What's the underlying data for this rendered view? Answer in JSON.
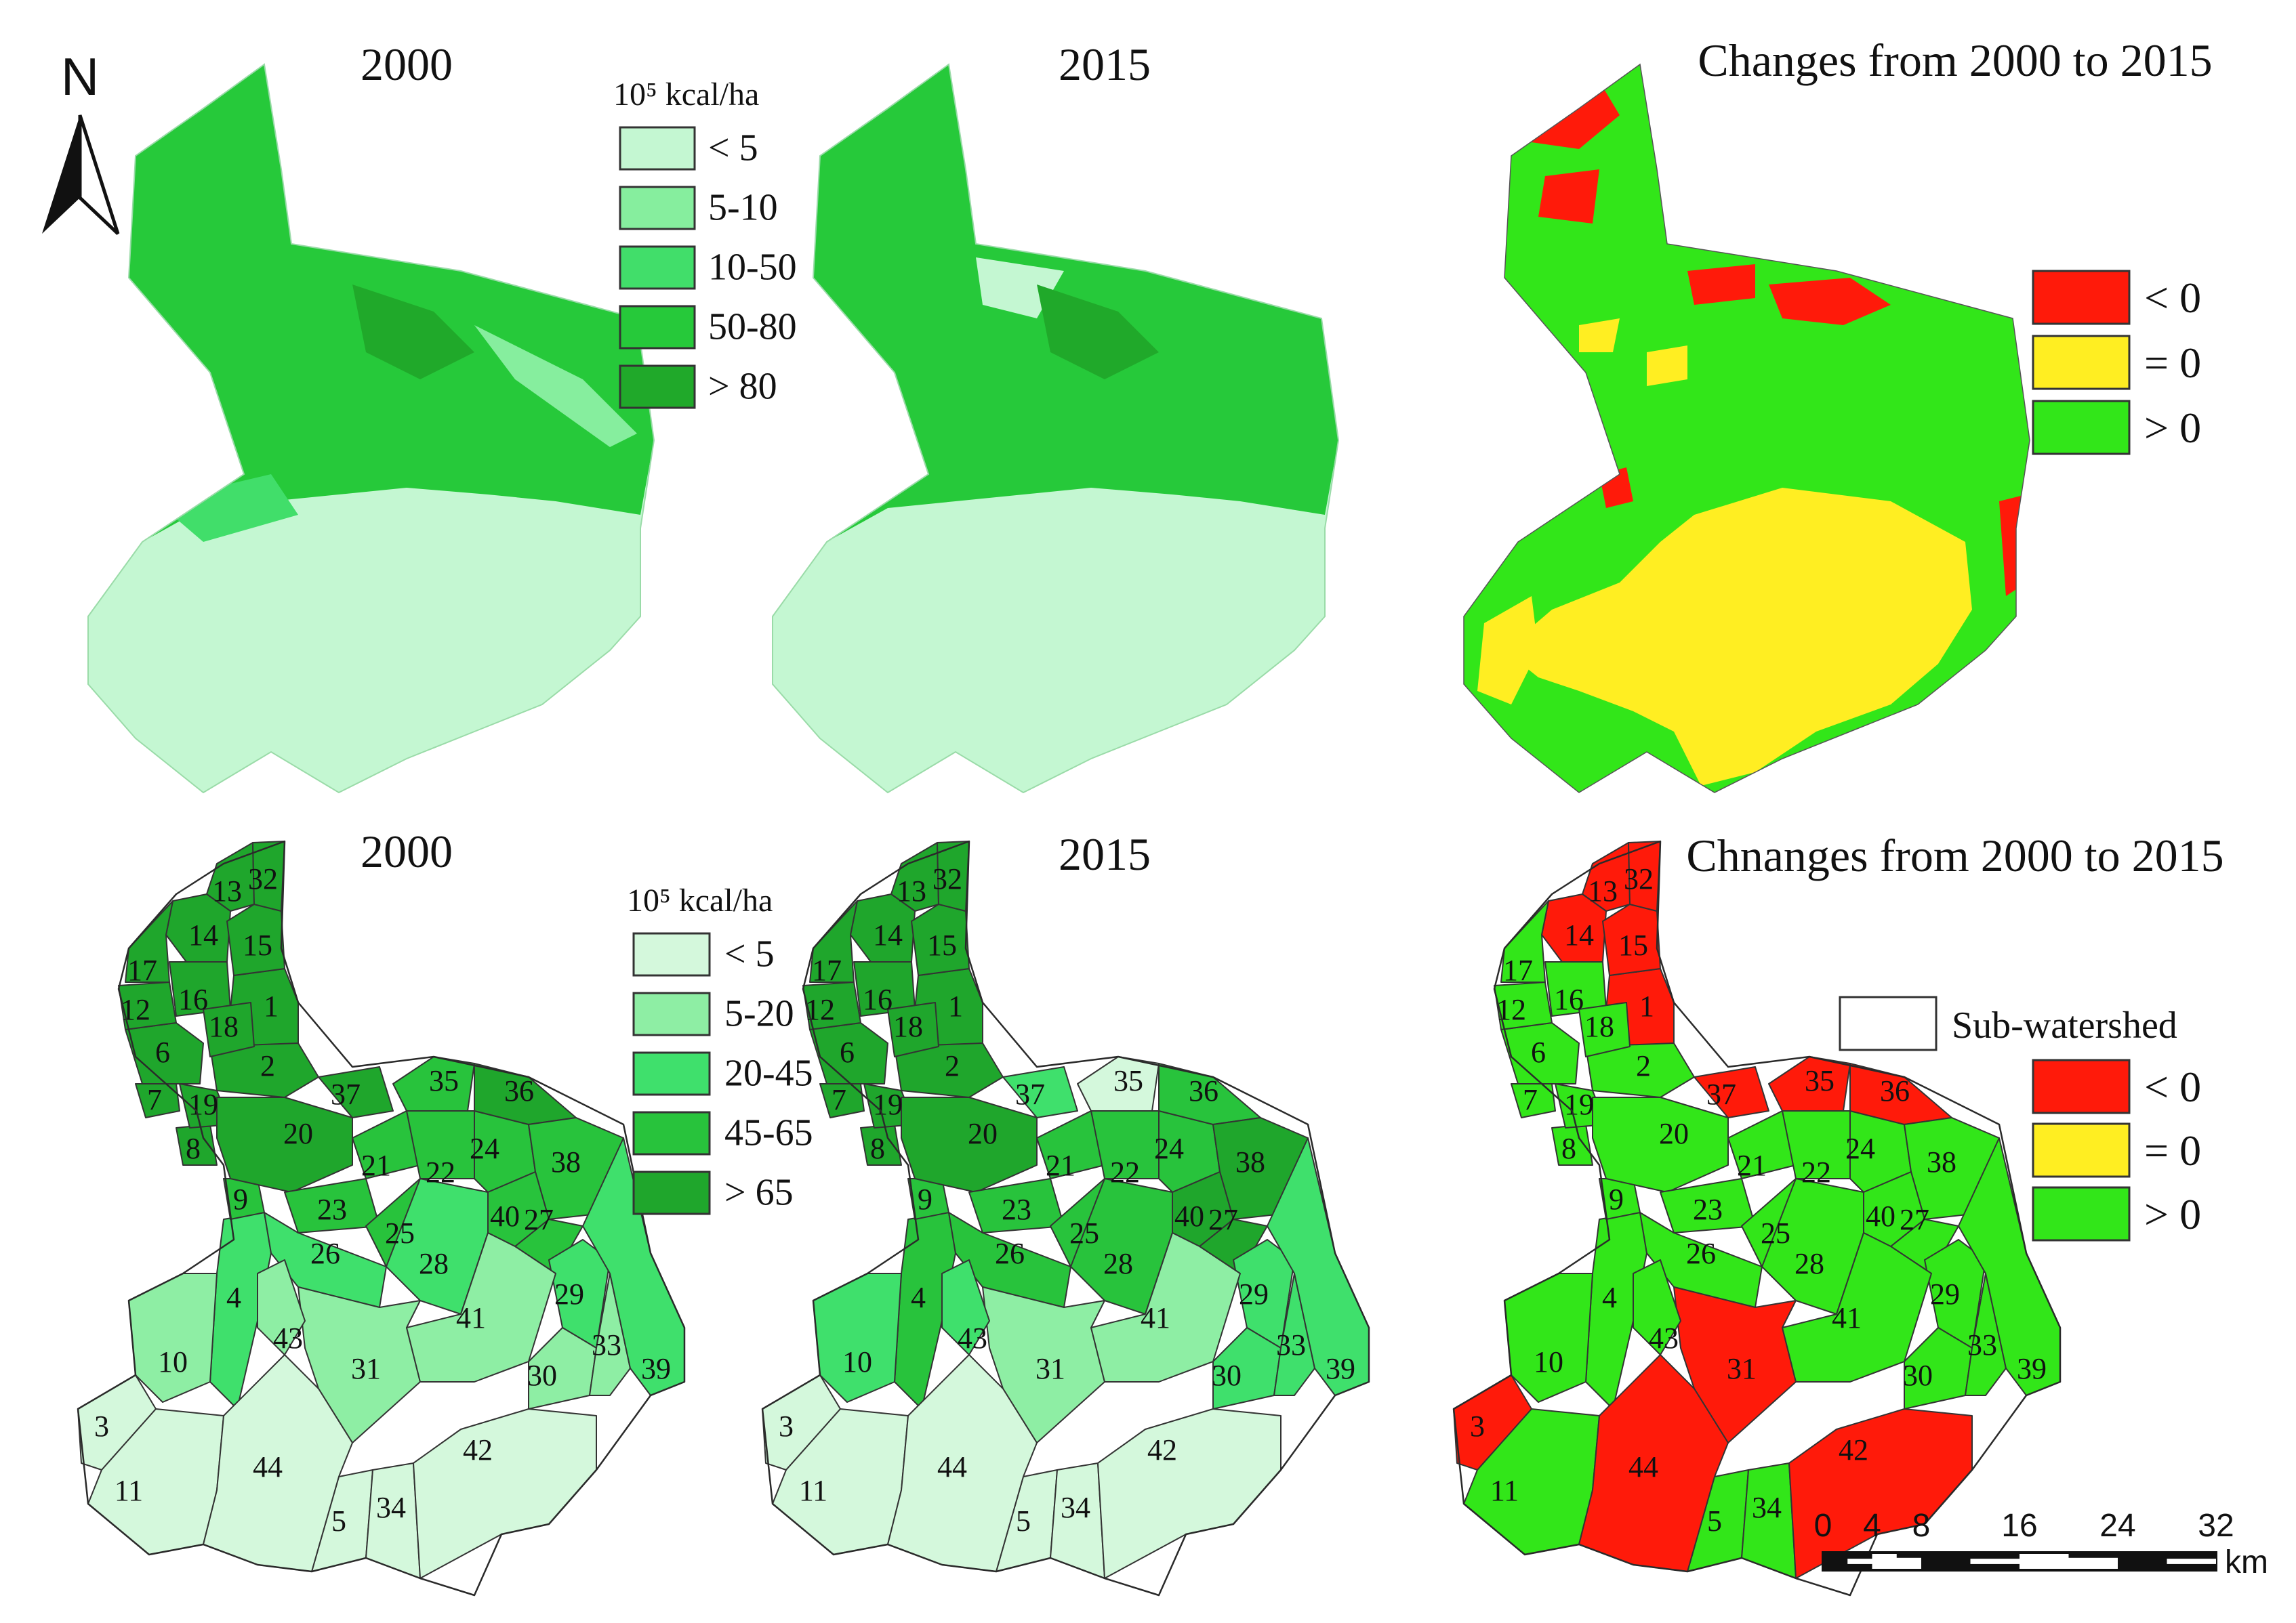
{
  "north_arrow": {
    "label": "N"
  },
  "top_row": {
    "panel1": {
      "title": "2000"
    },
    "panel2": {
      "title": "2015"
    },
    "panel3": {
      "title": "Changes from 2000 to 2015"
    },
    "legend": {
      "unit": "10⁵ kcal/ha",
      "classes": [
        {
          "label": "< 5",
          "color": "#c4f7d2"
        },
        {
          "label": "5-10",
          "color": "#86ee9e"
        },
        {
          "label": "10-50",
          "color": "#41de6a"
        },
        {
          "label": "50-80",
          "color": "#26c93a"
        },
        {
          "label": "> 80",
          "color": "#20a92a"
        }
      ]
    },
    "change_legend": {
      "classes": [
        {
          "label": "< 0",
          "color": "#ff1a0a"
        },
        {
          "label": "= 0",
          "color": "#ffee22"
        },
        {
          "label": "> 0",
          "color": "#32e619"
        }
      ]
    }
  },
  "bottom_row": {
    "panel1": {
      "title": "2000"
    },
    "panel2": {
      "title": "2015"
    },
    "panel3": {
      "title": "Chnanges from 2000 to 2015"
    },
    "legend": {
      "unit": "10⁵ kcal/ha",
      "classes": [
        {
          "label": "< 5",
          "color": "#d4f8dc"
        },
        {
          "label": "5-20",
          "color": "#8eeea4"
        },
        {
          "label": "20-45",
          "color": "#3fe06c"
        },
        {
          "label": "45-65",
          "color": "#28c33c"
        },
        {
          "label": "> 65",
          "color": "#1fa62c"
        }
      ]
    },
    "change_legend": {
      "subwatershed_label": "Sub-watershed",
      "classes": [
        {
          "label": "< 0",
          "color": "#ff1a0a"
        },
        {
          "label": "= 0",
          "color": "#ffee22"
        },
        {
          "label": "> 0",
          "color": "#32e619"
        }
      ]
    },
    "subwatersheds": [
      {
        "id": "1",
        "class_2000": 4,
        "class_2015": 4,
        "change": "<0"
      },
      {
        "id": "2",
        "class_2000": 4,
        "class_2015": 4,
        "change": ">0"
      },
      {
        "id": "3",
        "class_2000": 0,
        "class_2015": 0,
        "change": "<0"
      },
      {
        "id": "4",
        "class_2000": 2,
        "class_2015": 3,
        "change": ">0"
      },
      {
        "id": "5",
        "class_2000": 0,
        "class_2015": 0,
        "change": ">0"
      },
      {
        "id": "6",
        "class_2000": 4,
        "class_2015": 4,
        "change": ">0"
      },
      {
        "id": "7",
        "class_2000": 4,
        "class_2015": 4,
        "change": ">0"
      },
      {
        "id": "8",
        "class_2000": 4,
        "class_2015": 4,
        "change": ">0"
      },
      {
        "id": "9",
        "class_2000": 3,
        "class_2015": 3,
        "change": ">0"
      },
      {
        "id": "10",
        "class_2000": 1,
        "class_2015": 2,
        "change": ">0"
      },
      {
        "id": "11",
        "class_2000": 0,
        "class_2015": 0,
        "change": ">0"
      },
      {
        "id": "12",
        "class_2000": 4,
        "class_2015": 4,
        "change": ">0"
      },
      {
        "id": "13",
        "class_2000": 4,
        "class_2015": 4,
        "change": "<0"
      },
      {
        "id": "14",
        "class_2000": 4,
        "class_2015": 4,
        "change": "<0"
      },
      {
        "id": "15",
        "class_2000": 4,
        "class_2015": 4,
        "change": "<0"
      },
      {
        "id": "16",
        "class_2000": 4,
        "class_2015": 4,
        "change": ">0"
      },
      {
        "id": "17",
        "class_2000": 4,
        "class_2015": 4,
        "change": ">0"
      },
      {
        "id": "18",
        "class_2000": 4,
        "class_2015": 4,
        "change": ">0"
      },
      {
        "id": "19",
        "class_2000": 4,
        "class_2015": 4,
        "change": ">0"
      },
      {
        "id": "20",
        "class_2000": 4,
        "class_2015": 4,
        "change": ">0"
      },
      {
        "id": "21",
        "class_2000": 3,
        "class_2015": 3,
        "change": ">0"
      },
      {
        "id": "22",
        "class_2000": 3,
        "class_2015": 3,
        "change": ">0"
      },
      {
        "id": "23",
        "class_2000": 3,
        "class_2015": 3,
        "change": ">0"
      },
      {
        "id": "24",
        "class_2000": 3,
        "class_2015": 3,
        "change": ">0"
      },
      {
        "id": "25",
        "class_2000": 3,
        "class_2015": 3,
        "change": ">0"
      },
      {
        "id": "26",
        "class_2000": 2,
        "class_2015": 3,
        "change": ">0"
      },
      {
        "id": "27",
        "class_2000": 3,
        "class_2015": 4,
        "change": ">0"
      },
      {
        "id": "28",
        "class_2000": 2,
        "class_2015": 3,
        "change": ">0"
      },
      {
        "id": "29",
        "class_2000": 2,
        "class_2015": 2,
        "change": ">0"
      },
      {
        "id": "30",
        "class_2000": 1,
        "class_2015": 2,
        "change": ">0"
      },
      {
        "id": "31",
        "class_2000": 1,
        "class_2015": 1,
        "change": "<0"
      },
      {
        "id": "32",
        "class_2000": 4,
        "class_2015": 4,
        "change": "<0"
      },
      {
        "id": "33",
        "class_2000": 1,
        "class_2015": 2,
        "change": ">0"
      },
      {
        "id": "34",
        "class_2000": 0,
        "class_2015": 0,
        "change": ">0"
      },
      {
        "id": "35",
        "class_2000": 3,
        "class_2015": 0,
        "change": "<0"
      },
      {
        "id": "36",
        "class_2000": 4,
        "class_2015": 3,
        "change": "<0"
      },
      {
        "id": "37",
        "class_2000": 4,
        "class_2015": 2,
        "change": "<0"
      },
      {
        "id": "38",
        "class_2000": 3,
        "class_2015": 4,
        "change": ">0"
      },
      {
        "id": "39",
        "class_2000": 2,
        "class_2015": 2,
        "change": ">0"
      },
      {
        "id": "40",
        "class_2000": 3,
        "class_2015": 4,
        "change": ">0"
      },
      {
        "id": "41",
        "class_2000": 1,
        "class_2015": 1,
        "change": ">0"
      },
      {
        "id": "42",
        "class_2000": 0,
        "class_2015": 0,
        "change": "<0"
      },
      {
        "id": "43",
        "class_2000": 1,
        "class_2015": 2,
        "change": ">0"
      },
      {
        "id": "44",
        "class_2000": 0,
        "class_2015": 0,
        "change": "<0"
      }
    ]
  },
  "scale_bar": {
    "ticks": [
      "0",
      "4",
      "8",
      "16",
      "24",
      "32"
    ],
    "unit": "km"
  }
}
